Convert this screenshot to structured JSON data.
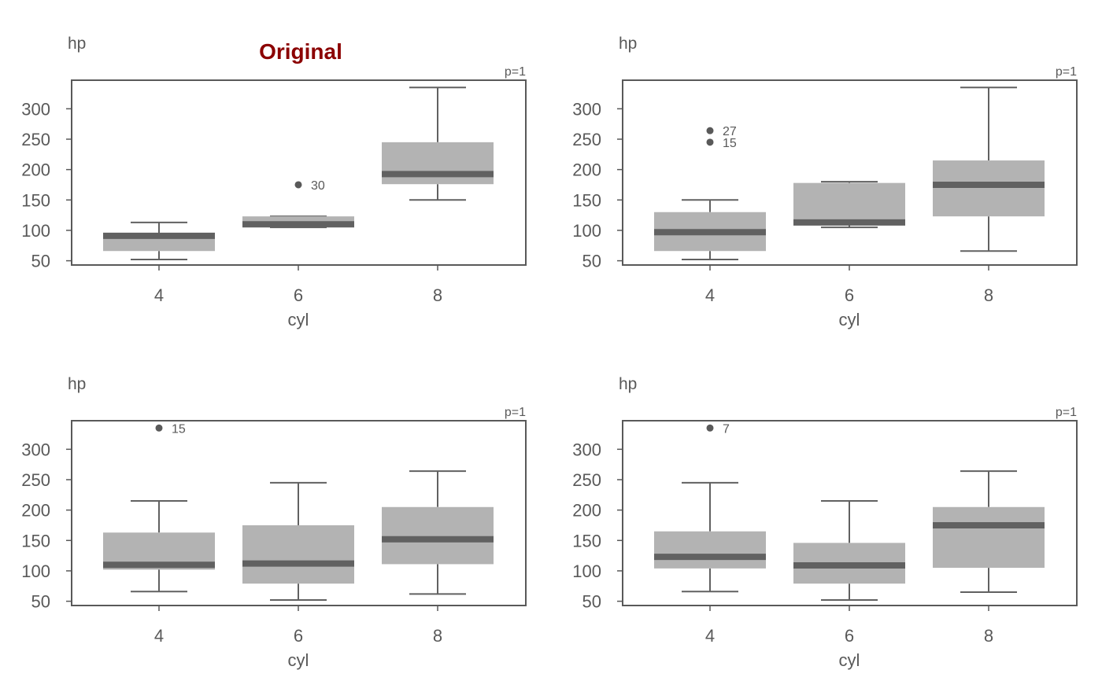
{
  "title": "Original",
  "colors": {
    "box_fill": "#b3b3b3",
    "median_line": "#616161",
    "whisker": "#616161",
    "outlier": "#595959",
    "axis": "#595959",
    "text": "#595959",
    "title": "#8b0000"
  },
  "chart_data": [
    {
      "type": "box",
      "title": "Original",
      "xlabel": "cyl",
      "ylabel": "hp",
      "categories": [
        "4",
        "6",
        "8"
      ],
      "yticks": [
        50,
        100,
        150,
        200,
        250,
        300
      ],
      "ylim": [
        43,
        347
      ],
      "p_label": "p=1",
      "boxes": [
        {
          "category": "4",
          "lower_whisker": 52,
          "q1": 66,
          "median": 91,
          "q3": 96,
          "upper_whisker": 113,
          "outliers": []
        },
        {
          "category": "6",
          "lower_whisker": 105,
          "q1": 106.5,
          "median": 110,
          "q3": 123,
          "upper_whisker": 123,
          "outliers": [
            {
              "value": 175,
              "label": "30"
            }
          ]
        },
        {
          "category": "8",
          "lower_whisker": 150,
          "q1": 176,
          "median": 192.5,
          "q3": 245,
          "upper_whisker": 335,
          "outliers": []
        }
      ]
    },
    {
      "type": "box",
      "title": "",
      "xlabel": "cyl",
      "ylabel": "hp",
      "categories": [
        "4",
        "6",
        "8"
      ],
      "yticks": [
        50,
        100,
        150,
        200,
        250,
        300
      ],
      "ylim": [
        43,
        347
      ],
      "p_label": "p=1",
      "boxes": [
        {
          "category": "4",
          "lower_whisker": 52,
          "q1": 66,
          "median": 97,
          "q3": 130,
          "upper_whisker": 150,
          "outliers": [
            {
              "value": 264,
              "label": "27"
            },
            {
              "value": 245,
              "label": "15"
            }
          ]
        },
        {
          "category": "6",
          "lower_whisker": 105,
          "q1": 110,
          "median": 113,
          "q3": 178,
          "upper_whisker": 180,
          "outliers": []
        },
        {
          "category": "8",
          "lower_whisker": 66,
          "q1": 123,
          "median": 175,
          "q3": 215,
          "upper_whisker": 335,
          "outliers": []
        }
      ]
    },
    {
      "type": "box",
      "title": "",
      "xlabel": "cyl",
      "ylabel": "hp",
      "categories": [
        "4",
        "6",
        "8"
      ],
      "yticks": [
        50,
        100,
        150,
        200,
        250,
        300
      ],
      "ylim": [
        43,
        347
      ],
      "p_label": "p=1",
      "boxes": [
        {
          "category": "4",
          "lower_whisker": 66,
          "q1": 102,
          "median": 110,
          "q3": 163,
          "upper_whisker": 215,
          "outliers": [
            {
              "value": 335,
              "label": "15"
            }
          ]
        },
        {
          "category": "6",
          "lower_whisker": 52,
          "q1": 79,
          "median": 112,
          "q3": 175,
          "upper_whisker": 245,
          "outliers": []
        },
        {
          "category": "8",
          "lower_whisker": 62,
          "q1": 111,
          "median": 152,
          "q3": 205,
          "upper_whisker": 264,
          "outliers": []
        }
      ]
    },
    {
      "type": "box",
      "title": "",
      "xlabel": "cyl",
      "ylabel": "hp",
      "categories": [
        "4",
        "6",
        "8"
      ],
      "yticks": [
        50,
        100,
        150,
        200,
        250,
        300
      ],
      "ylim": [
        43,
        347
      ],
      "p_label": "p=1",
      "boxes": [
        {
          "category": "4",
          "lower_whisker": 66,
          "q1": 104,
          "median": 123,
          "q3": 165,
          "upper_whisker": 245,
          "outliers": [
            {
              "value": 335,
              "label": "7"
            }
          ]
        },
        {
          "category": "6",
          "lower_whisker": 52,
          "q1": 79,
          "median": 109,
          "q3": 146,
          "upper_whisker": 215,
          "outliers": []
        },
        {
          "category": "8",
          "lower_whisker": 65,
          "q1": 105,
          "median": 175,
          "q3": 205,
          "upper_whisker": 264,
          "outliers": []
        }
      ]
    }
  ]
}
